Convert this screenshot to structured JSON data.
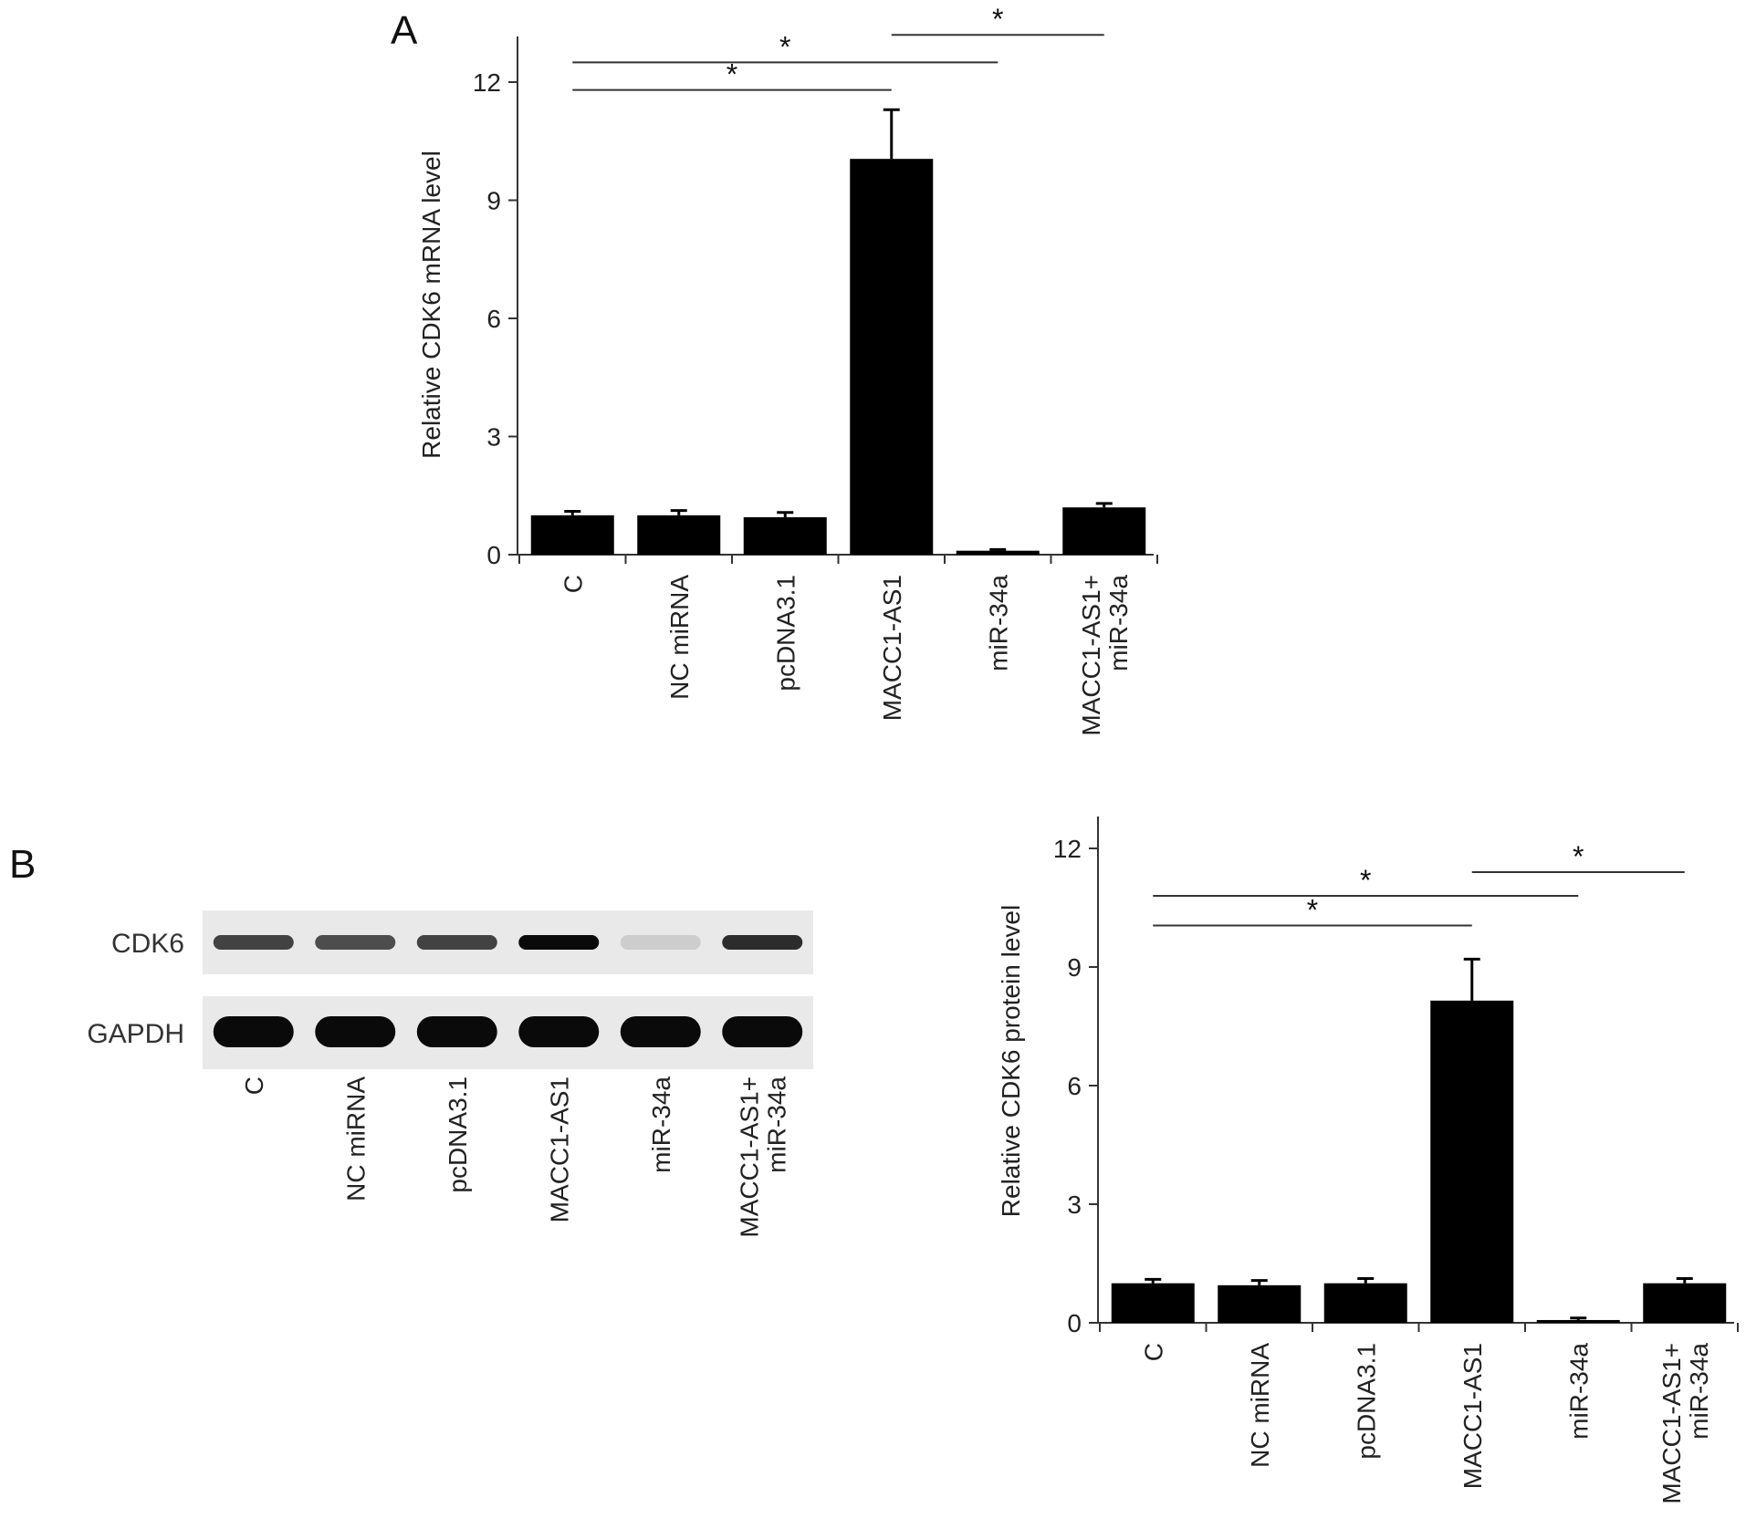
{
  "panels": {
    "a": "A",
    "b": "B"
  },
  "colors": {
    "bar": "#000000",
    "axis": "#333333",
    "sig_line": "#333333",
    "blot_bg": "#e9e9e9",
    "band": "#0a0a0a"
  },
  "chart_data": [
    {
      "id": "mrna",
      "type": "bar",
      "ylabel": "Relative CDK6 mRNA level",
      "ylim": [
        0,
        13
      ],
      "yticks": [
        0,
        3,
        6,
        9,
        12
      ],
      "categories": [
        [
          "C"
        ],
        [
          "NC miRNA"
        ],
        [
          "pcDNA3.1"
        ],
        [
          "MACC1-AS1"
        ],
        [
          "miR-34a"
        ],
        [
          "MACC1-AS1+",
          "miR-34a"
        ]
      ],
      "values": [
        1.0,
        1.0,
        0.95,
        10.05,
        0.1,
        1.2
      ],
      "errors": [
        0.1,
        0.12,
        0.12,
        1.25,
        0.03,
        0.1
      ],
      "significance": [
        {
          "from": 0,
          "to": 3,
          "y": 11.8,
          "label": "*"
        },
        {
          "from": 0,
          "to": 4,
          "y": 12.5,
          "label": "*"
        },
        {
          "from": 3,
          "to": 5,
          "y": 13.2,
          "label": "*"
        }
      ]
    },
    {
      "id": "protein",
      "type": "bar",
      "ylabel": "Relative CDK6 protein level",
      "ylim": [
        0,
        12.8
      ],
      "yticks": [
        0,
        3,
        6,
        9,
        12
      ],
      "categories": [
        [
          "C"
        ],
        [
          "NC miRNA"
        ],
        [
          "pcDNA3.1"
        ],
        [
          "MACC1-AS1"
        ],
        [
          "miR-34a"
        ],
        [
          "MACC1-AS1+",
          "miR-34a"
        ]
      ],
      "values": [
        1.0,
        0.95,
        1.0,
        8.15,
        0.07,
        1.0
      ],
      "errors": [
        0.1,
        0.12,
        0.12,
        1.05,
        0.05,
        0.12
      ],
      "significance": [
        {
          "from": 0,
          "to": 3,
          "y": 10.05,
          "label": "*"
        },
        {
          "from": 0,
          "to": 4,
          "y": 10.8,
          "label": "*"
        },
        {
          "from": 3,
          "to": 5,
          "y": 11.4,
          "label": "*"
        }
      ]
    }
  ],
  "blot": {
    "rows": [
      "CDK6",
      "GAPDH"
    ],
    "lanes": [
      [
        "C"
      ],
      [
        "NC miRNA"
      ],
      [
        "pcDNA3.1"
      ],
      [
        "MACC1-AS1"
      ],
      [
        "miR-34a"
      ],
      [
        "MACC1-AS1+",
        "miR-34a"
      ]
    ],
    "cdk6_intensity": [
      0.75,
      0.7,
      0.75,
      1.0,
      0.12,
      0.85
    ],
    "gapdh_intensity": [
      1,
      1,
      1,
      1,
      1,
      1
    ]
  }
}
